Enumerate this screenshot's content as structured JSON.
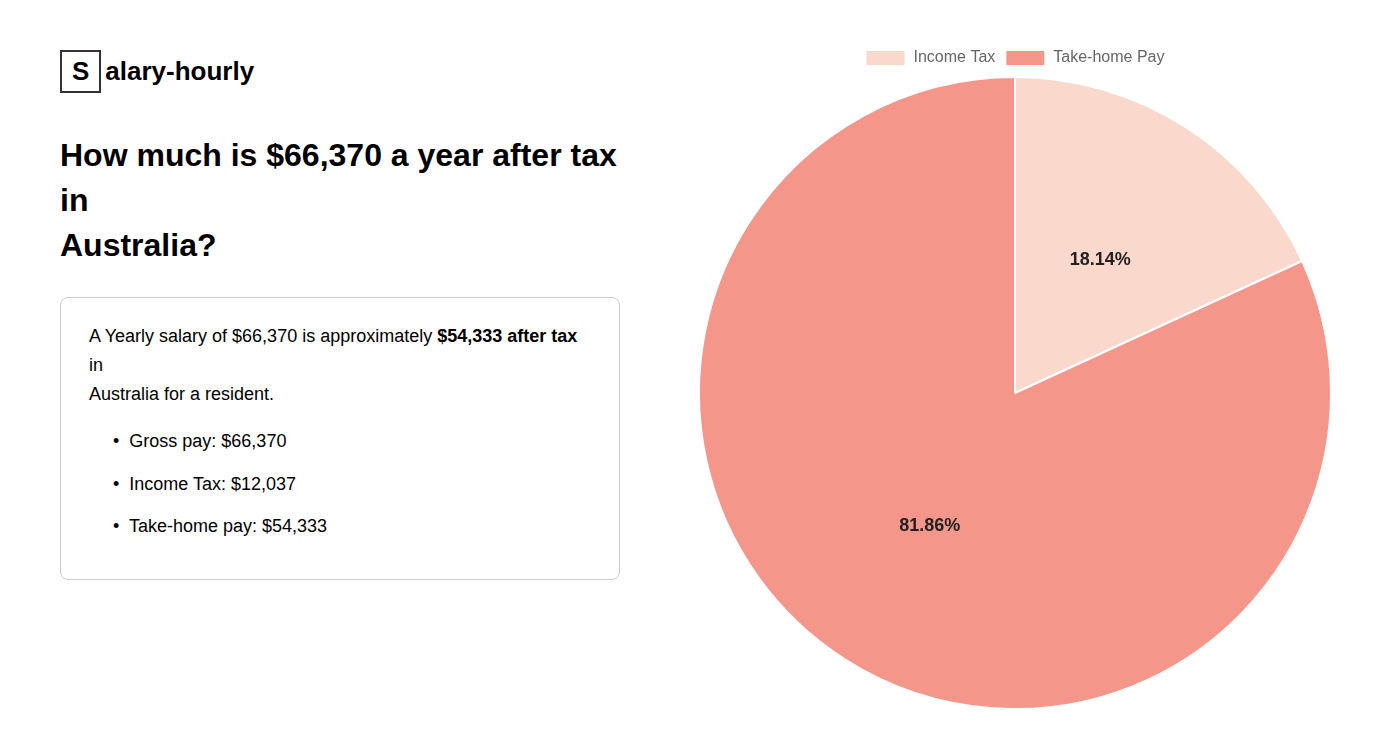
{
  "chart_data": {
    "type": "pie",
    "title": "How much is $66,370 a year after tax in\nAustralia?",
    "annotations": [
      "S",
      "alary-hourly",
      "A Yearly salary of $66,370 is approximately ",
      "$54,333 after tax",
      " in",
      "Australia for a resident.",
      "•  Gross pay: $66,370",
      "•  Income Tax: $12,037",
      "•  Take-home pay: $54,333"
    ],
    "categories": [
      "Income Tax",
      "Take-home Pay"
    ],
    "values": [
      18.14,
      81.86
    ],
    "value_labels": [
      "18.14%",
      "81.86%"
    ],
    "colors": [
      "#fad9cc",
      "#f5968a"
    ],
    "data_labels": true,
    "legend": "top"
  }
}
